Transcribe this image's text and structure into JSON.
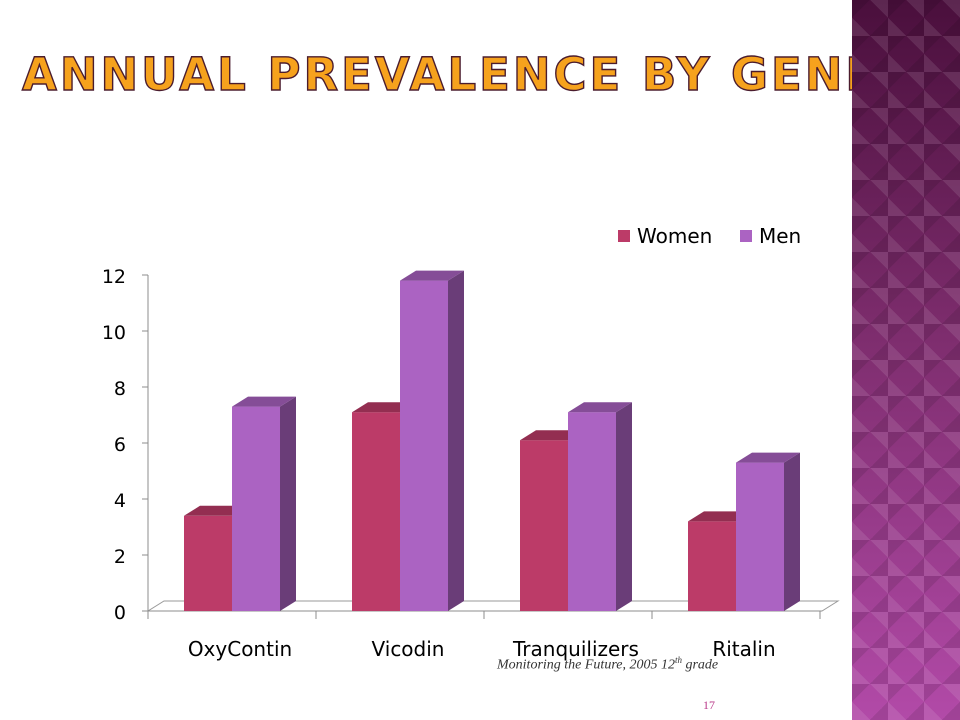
{
  "slide": {
    "title": "Annual Prevalence by Gender",
    "source_main": "Monitoring the Future, 2005   12",
    "source_sup": "th",
    "source_tail": " grade",
    "page_number": "17"
  },
  "colors": {
    "women": "#bc3b68",
    "men": "#ab63c2",
    "title": "#f6a21d",
    "side_panel": "#7a3076"
  },
  "chart_data": {
    "type": "bar",
    "title": "",
    "xlabel": "",
    "ylabel": "",
    "categories": [
      "OxyContin",
      "Vicodin",
      "Tranquilizers",
      "Ritalin"
    ],
    "series": [
      {
        "name": "Women",
        "values": [
          3.4,
          7.1,
          6.1,
          3.2
        ]
      },
      {
        "name": "Men",
        "values": [
          7.3,
          11.8,
          7.1,
          5.3
        ]
      }
    ],
    "ylim": [
      0,
      12
    ],
    "yticks": [
      0,
      2,
      4,
      6,
      8,
      10,
      12
    ],
    "legend_position": "top-right",
    "grid": false
  }
}
